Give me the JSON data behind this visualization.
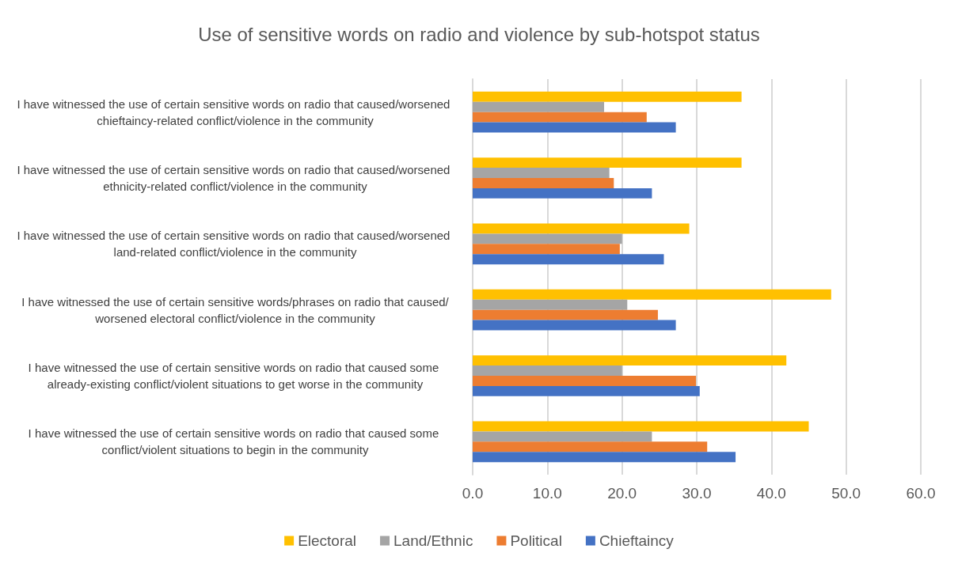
{
  "chart_data": {
    "type": "bar",
    "orientation": "horizontal",
    "title": "Use of sensitive words on radio and violence by sub-hotspot status",
    "categories": [
      "I have witnessed the use of certain sensitive words on radio that caused/worsened chieftaincy-related conflict/violence in the community",
      "I have witnessed the use of certain sensitive words on radio that caused/worsened ethnicity-related conflict/violence in the community",
      "I have witnessed the use of certain sensitive words on radio that caused/worsened land-related conflict/violence in the community",
      "I have witnessed the use of certain sensitive words/phrases on radio that caused/worsened electoral conflict/violence in the community",
      "I have witnessed the use of certain sensitive words on radio that caused some already-existing conflict/violent situations to get worse in the community",
      "I have witnessed the use of certain sensitive words on radio that caused some conflict/violent situations to begin in the community"
    ],
    "series": [
      {
        "name": "Electoral",
        "color": "#ffc000",
        "values": [
          36.0,
          36.0,
          29.0,
          48.0,
          42.0,
          45.0
        ]
      },
      {
        "name": "Land/Ethnic",
        "color": "#a5a5a5",
        "values": [
          17.6,
          18.3,
          20.0,
          20.7,
          20.0,
          24.0
        ]
      },
      {
        "name": "Political",
        "color": "#ed7d31",
        "values": [
          23.3,
          18.9,
          19.7,
          24.8,
          29.9,
          31.4
        ]
      },
      {
        "name": "Chieftaincy",
        "color": "#4472c4",
        "values": [
          27.2,
          24.0,
          25.6,
          27.2,
          30.4,
          35.2
        ]
      }
    ],
    "xlim": [
      0,
      60
    ],
    "xticks": [
      {
        "value": 0,
        "label": "0.0"
      },
      {
        "value": 10,
        "label": "10.0"
      },
      {
        "value": 20,
        "label": "20.0"
      },
      {
        "value": 30,
        "label": "30.0"
      },
      {
        "value": 40,
        "label": "40.0"
      },
      {
        "value": 50,
        "label": "50.0"
      },
      {
        "value": 60,
        "label": "60.0"
      }
    ],
    "grid": "x",
    "legend": "bottom"
  }
}
